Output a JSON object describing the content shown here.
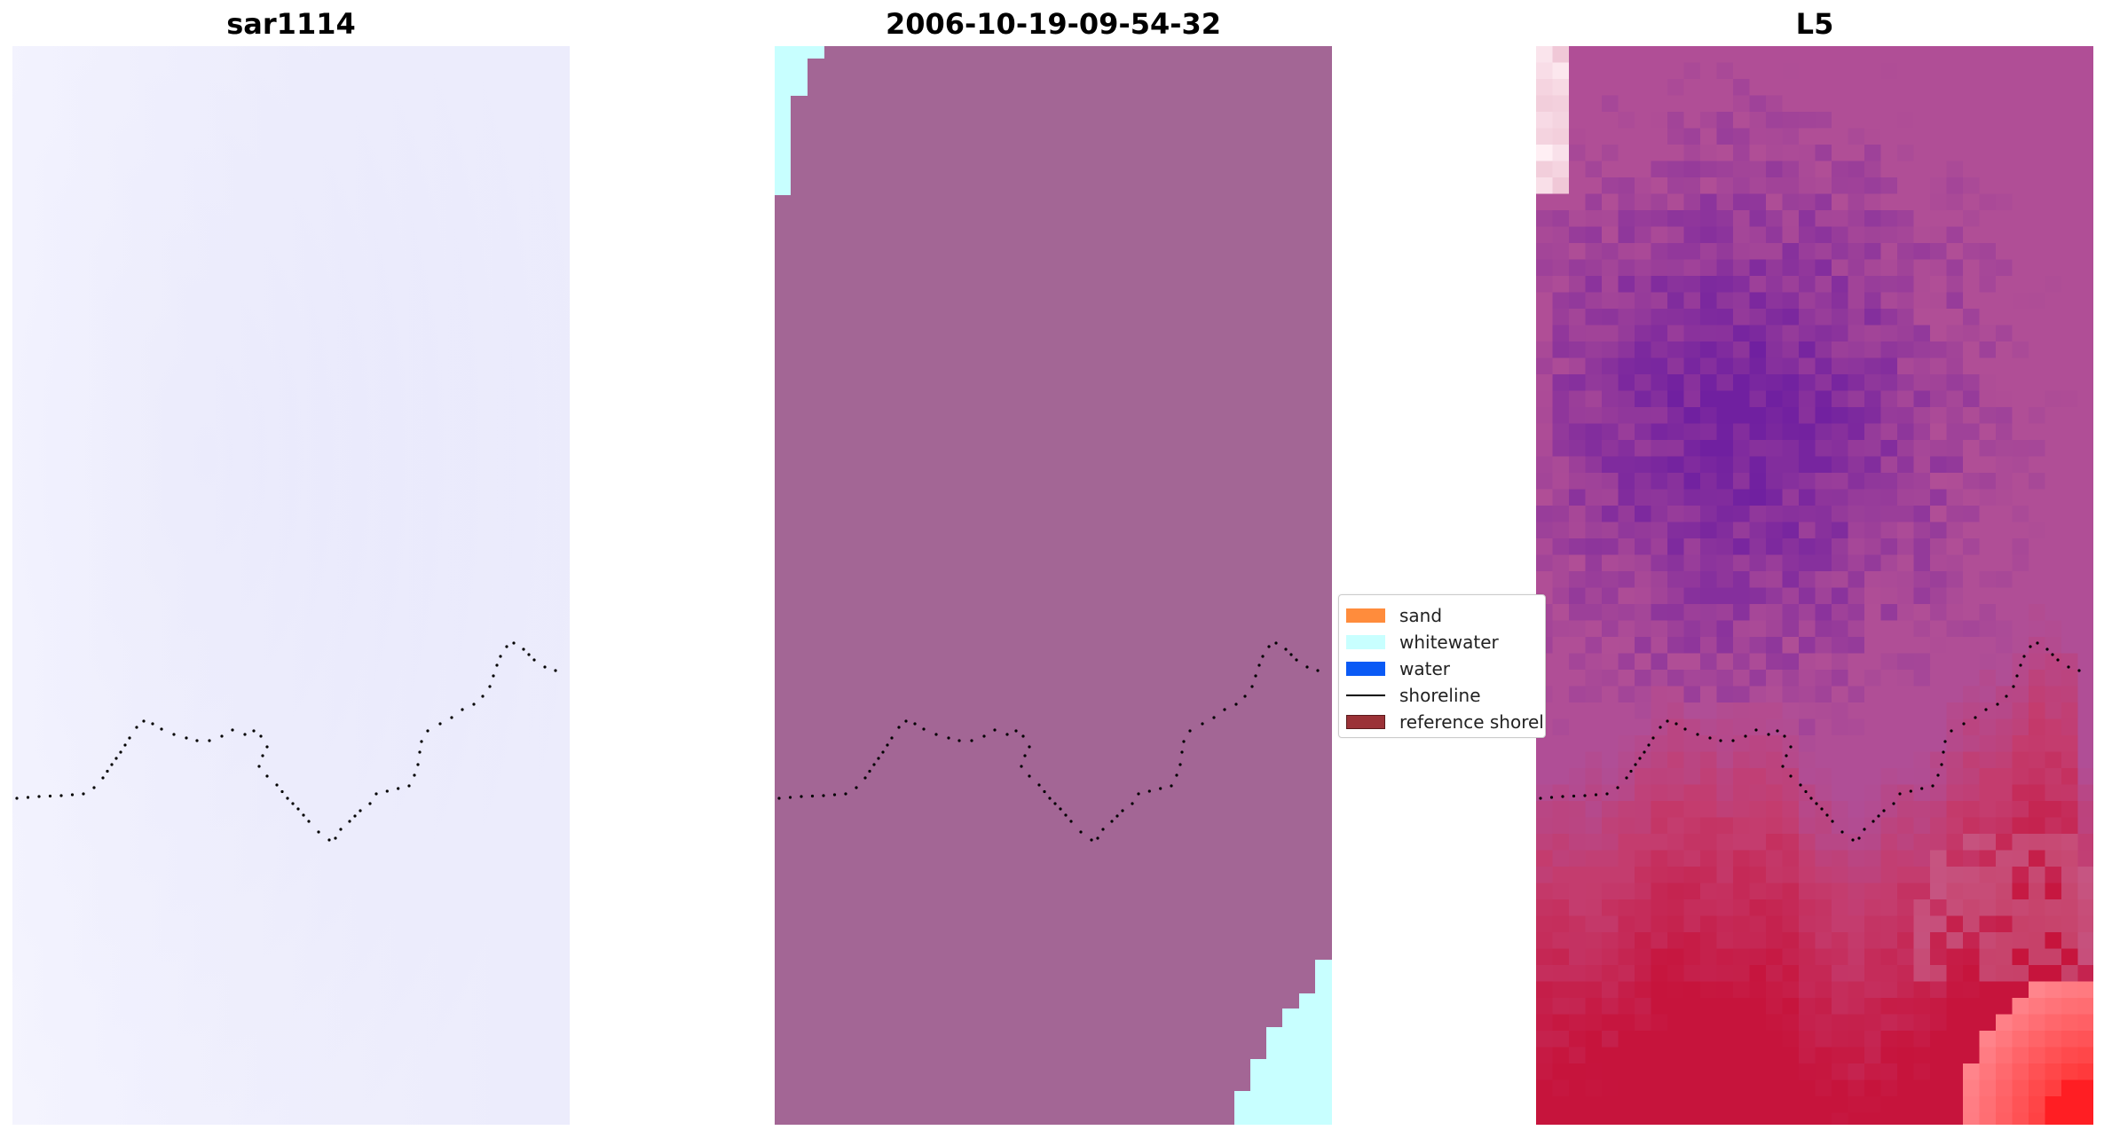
{
  "panels": [
    {
      "title": "sar1114"
    },
    {
      "title": "2006-10-19-09-54-32"
    },
    {
      "title": "L5"
    }
  ],
  "legend": {
    "items": [
      {
        "label": "sand",
        "color": "#ff8c3c",
        "kind": "patch"
      },
      {
        "label": "whitewater",
        "color": "#c8ffff",
        "kind": "patch"
      },
      {
        "label": "water",
        "color": "#0a5af5",
        "kind": "patch"
      },
      {
        "label": "shoreline",
        "color": "#000000",
        "kind": "line"
      },
      {
        "label": "reference shoreline",
        "color": "#9b3237",
        "kind": "patch"
      }
    ]
  },
  "colors": {
    "classified_background": "#a36695",
    "whitewater": "#c8ffff",
    "shoreline_dots": "#000000"
  }
}
